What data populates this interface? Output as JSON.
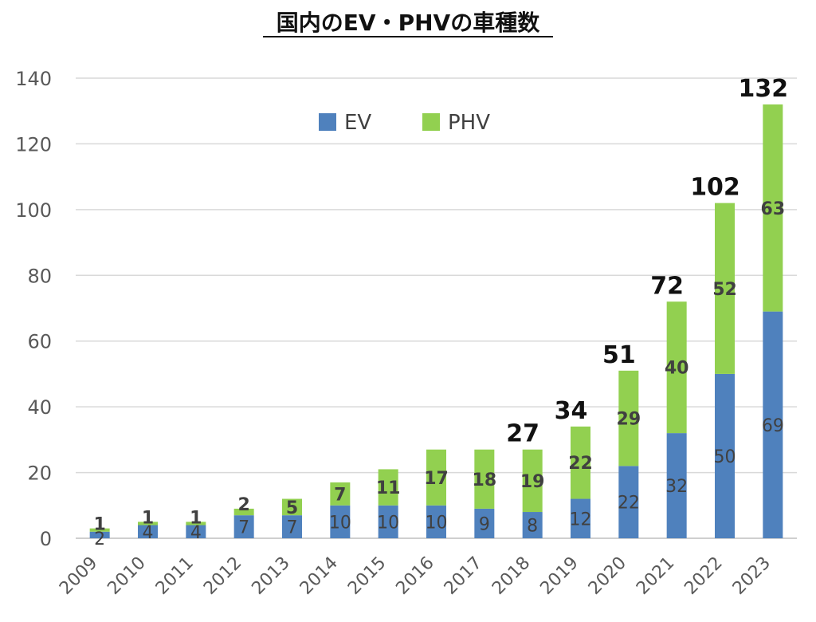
{
  "chart_data": {
    "type": "bar",
    "stacked": true,
    "title": "国内のEV・PHVの車種数",
    "categories": [
      "2009",
      "2010",
      "2011",
      "2012",
      "2013",
      "2014",
      "2015",
      "2016",
      "2017",
      "2018",
      "2019",
      "2020",
      "2021",
      "2022",
      "2023"
    ],
    "series": [
      {
        "name": "EV",
        "color": "#4f81bd",
        "values": [
          2,
          4,
          4,
          7,
          7,
          10,
          10,
          10,
          9,
          8,
          12,
          22,
          32,
          50,
          69
        ]
      },
      {
        "name": "PHV",
        "color": "#92d050",
        "values": [
          1,
          1,
          1,
          2,
          5,
          7,
          11,
          17,
          18,
          19,
          22,
          29,
          40,
          52,
          63
        ]
      }
    ],
    "totals": [
      {
        "category": "2018",
        "value": 27
      },
      {
        "category": "2019",
        "value": 34
      },
      {
        "category": "2020",
        "value": 51
      },
      {
        "category": "2021",
        "value": 72
      },
      {
        "category": "2022",
        "value": 102
      },
      {
        "category": "2023",
        "value": 132
      }
    ],
    "ylim": [
      0,
      140
    ],
    "yticks": [
      0,
      20,
      40,
      60,
      80,
      100,
      120,
      140
    ],
    "grid": true,
    "legend": "top-center",
    "xlabel": "",
    "ylabel": ""
  }
}
